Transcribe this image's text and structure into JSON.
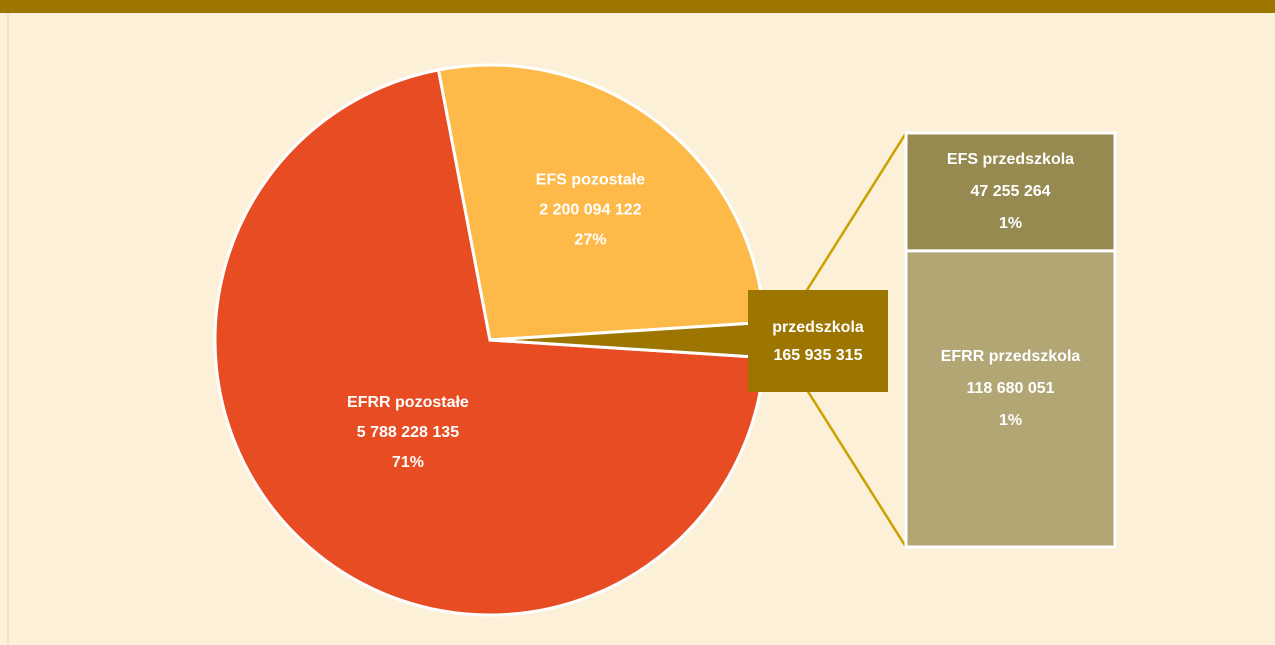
{
  "chart_data": {
    "type": "pie-of-bar",
    "pie": {
      "slices": [
        {
          "name": "EFRR pozostałe",
          "value": 5788228135,
          "value_label": "5 788 228 135",
          "percent_label": "71%",
          "color": "#e84c22"
        },
        {
          "name": "EFS pozostałe",
          "value": 2200094122,
          "value_label": "2 200 094 122",
          "percent_label": "27%",
          "color": "#fdba48"
        },
        {
          "name": "przedszkola",
          "value": 165935315,
          "value_label": "165 935 315",
          "color": "#9c7600"
        }
      ]
    },
    "bar": {
      "segments": [
        {
          "name": "EFS przedszkola",
          "value": 47255264,
          "value_label": "47 255 264",
          "percent_label": "1%",
          "color": "#968a50"
        },
        {
          "name": "EFRR przedszkola",
          "value": 118680051,
          "value_label": "118 680 051",
          "percent_label": "1%",
          "color": "#b2a675"
        }
      ]
    },
    "connector_color": "#c9a200"
  }
}
